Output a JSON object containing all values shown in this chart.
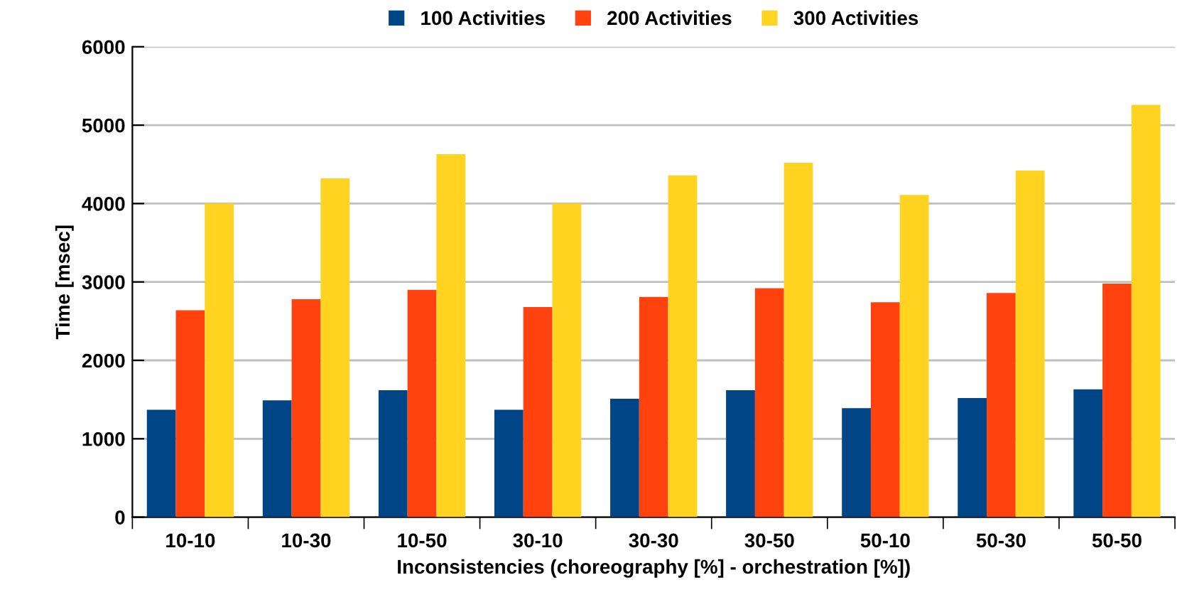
{
  "chart_data": {
    "type": "bar",
    "xlabel": "Inconsistencies (choreography [%] - orchestration [%])",
    "ylabel": "Time [msec]",
    "categories": [
      "10-10",
      "10-30",
      "10-50",
      "30-10",
      "30-30",
      "30-50",
      "50-10",
      "50-30",
      "50-50"
    ],
    "series": [
      {
        "name": "100 Activities",
        "color": "#004586",
        "values": [
          1370,
          1490,
          1620,
          1370,
          1510,
          1620,
          1390,
          1520,
          1630
        ]
      },
      {
        "name": "200 Activities",
        "color": "#ff420e",
        "values": [
          2640,
          2780,
          2900,
          2680,
          2810,
          2920,
          2740,
          2860,
          2980
        ]
      },
      {
        "name": "300 Activities",
        "color": "#ffd320",
        "values": [
          4000,
          4320,
          4630,
          4000,
          4360,
          4520,
          4110,
          4420,
          5260
        ]
      }
    ],
    "ylim": [
      0,
      6000
    ],
    "yticks": [
      0,
      1000,
      2000,
      3000,
      4000,
      5000,
      6000
    ],
    "grid": "y",
    "legend": "top"
  }
}
